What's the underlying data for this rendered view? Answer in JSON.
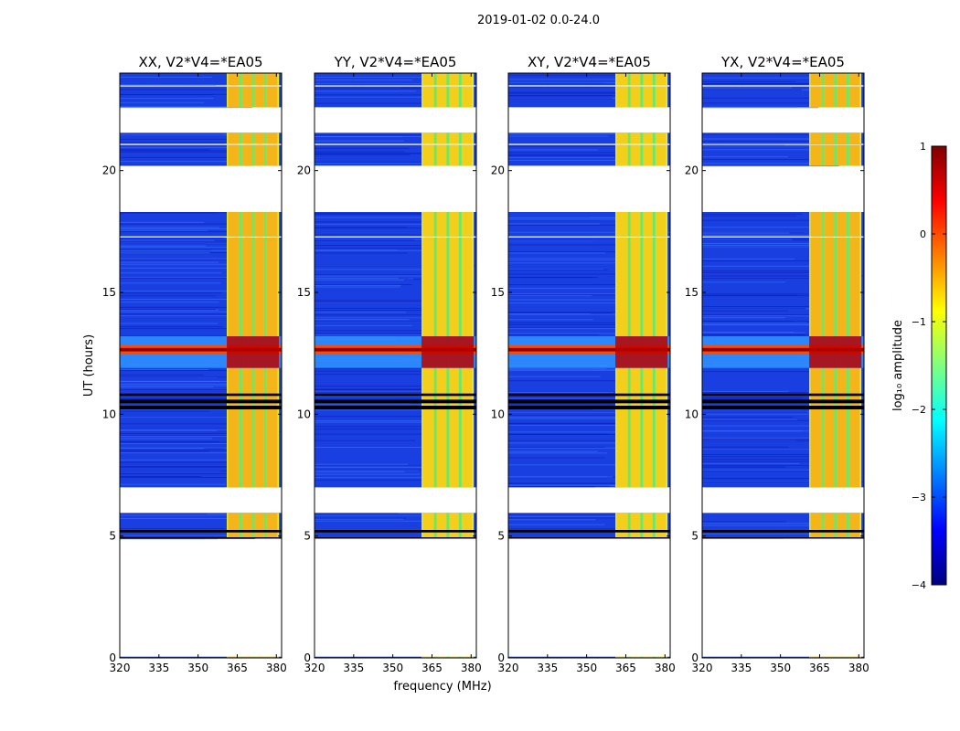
{
  "chart_data": {
    "type": "heatmap",
    "suptitle": "2019-01-02 0.0-24.0",
    "xlabel": "frequency (MHz)",
    "ylabel": "UT (hours)",
    "xlim": [
      320,
      382
    ],
    "ylim": [
      0,
      24
    ],
    "xticks": [
      320,
      335,
      350,
      365,
      380
    ],
    "yticks": [
      0,
      5,
      10,
      15,
      20
    ],
    "panels": [
      {
        "title": "XX, V2*V4=*EA05"
      },
      {
        "title": "YY, V2*V4=*EA05"
      },
      {
        "title": "XY, V2*V4=*EA05"
      },
      {
        "title": "YX, V2*V4=*EA05"
      }
    ],
    "colorbar": {
      "label": "log₁₀ amplitude",
      "range": [
        -4,
        1
      ],
      "ticks": [
        "1",
        "0",
        "−1",
        "−2",
        "−3",
        "−4"
      ],
      "colormap": "jet"
    },
    "data_gaps_hours": [
      [
        0.05,
        4.9
      ],
      [
        5.95,
        7.0
      ],
      [
        17.25,
        17.3
      ],
      [
        18.3,
        20.2
      ],
      [
        21.05,
        21.1
      ],
      [
        21.55,
        22.6
      ],
      [
        23.45,
        23.5
      ]
    ],
    "bright_band_mhz": [
      361,
      381
    ],
    "rfi_event_hours": [
      11.9,
      13.2
    ]
  }
}
